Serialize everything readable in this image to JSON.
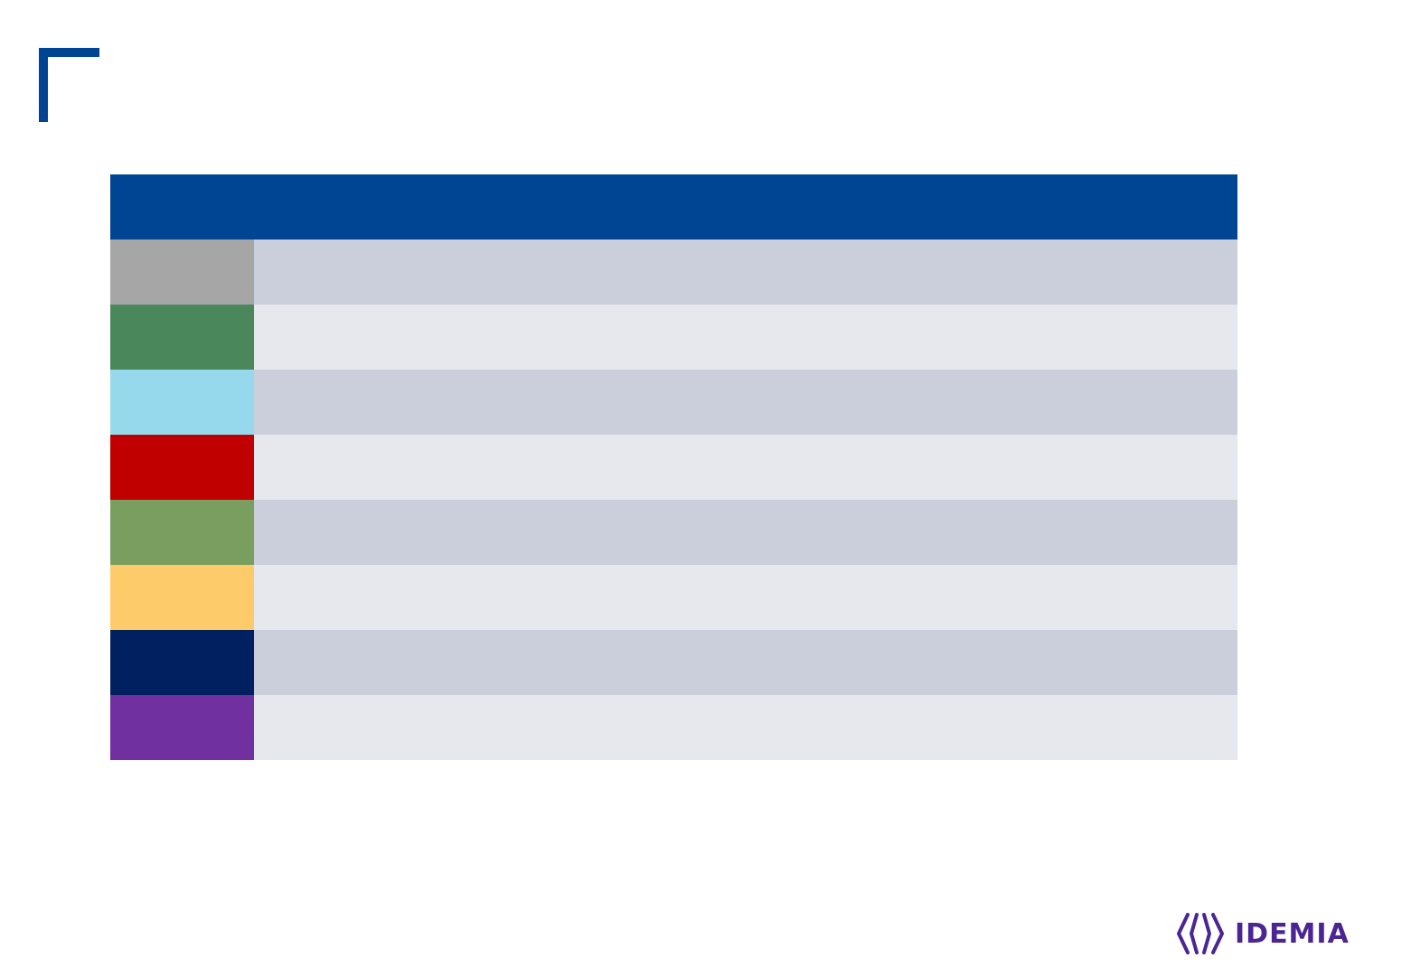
{
  "table": {
    "header_color": "#004494",
    "swatches": [
      "#a6a6a6",
      "#4a875b",
      "#96d9ec",
      "#c00000",
      "#7a9e60",
      "#fecb6b",
      "#002060",
      "#7030a0"
    ]
  },
  "logo": {
    "text": "IDEMIA",
    "color": "#4a2593"
  }
}
